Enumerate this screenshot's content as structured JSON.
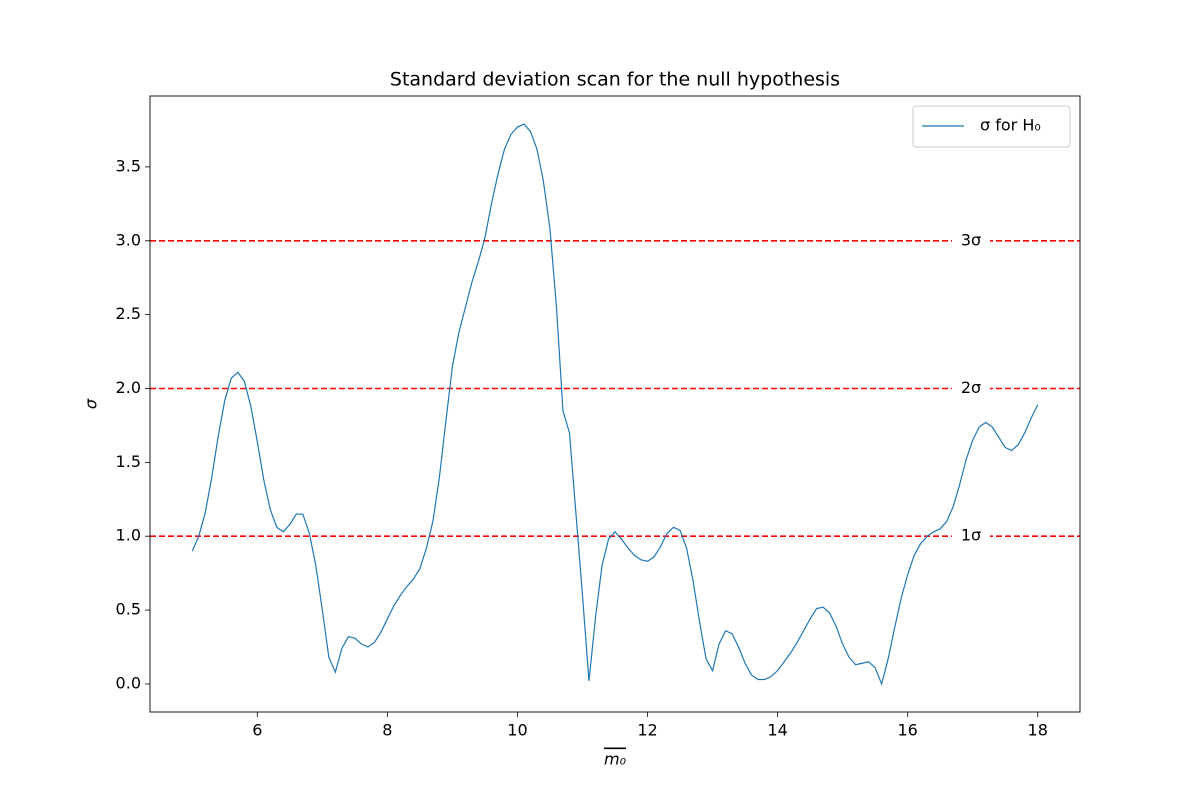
{
  "chart_data": {
    "type": "line",
    "title": "Standard deviation scan for the null hypothesis",
    "xlabel": "m₀",
    "ylabel": "σ",
    "x": [
      5.0,
      5.1,
      5.2,
      5.3,
      5.4,
      5.5,
      5.6,
      5.7,
      5.8,
      5.9,
      6.0,
      6.1,
      6.2,
      6.3,
      6.4,
      6.5,
      6.6,
      6.7,
      6.8,
      6.9,
      7.0,
      7.1,
      7.2,
      7.3,
      7.4,
      7.5,
      7.6,
      7.7,
      7.8,
      7.9,
      8.0,
      8.1,
      8.2,
      8.3,
      8.4,
      8.5,
      8.6,
      8.7,
      8.8,
      8.9,
      9.0,
      9.1,
      9.2,
      9.3,
      9.4,
      9.5,
      9.6,
      9.7,
      9.8,
      9.9,
      10.0,
      10.1,
      10.2,
      10.3,
      10.4,
      10.5,
      10.6,
      10.7,
      10.8,
      10.9,
      11.0,
      11.1,
      11.2,
      11.3,
      11.4,
      11.5,
      11.6,
      11.7,
      11.8,
      11.9,
      12.0,
      12.1,
      12.2,
      12.3,
      12.4,
      12.5,
      12.6,
      12.7,
      12.8,
      12.9,
      13.0,
      13.1,
      13.2,
      13.3,
      13.4,
      13.5,
      13.6,
      13.7,
      13.8,
      13.9,
      14.0,
      14.1,
      14.2,
      14.3,
      14.4,
      14.5,
      14.6,
      14.7,
      14.8,
      14.9,
      15.0,
      15.1,
      15.2,
      15.3,
      15.4,
      15.5,
      15.6,
      15.7,
      15.8,
      15.9,
      16.0,
      16.1,
      16.2,
      16.3,
      16.4,
      16.5,
      16.6,
      16.7,
      16.8,
      16.9,
      17.0,
      17.1,
      17.2,
      17.3,
      17.4,
      17.5,
      17.6,
      17.7,
      17.8,
      17.9,
      18.0
    ],
    "series": [
      {
        "name": "σ for H₀",
        "color": "#1f77b4",
        "values": [
          0.9,
          1.0,
          1.16,
          1.4,
          1.68,
          1.92,
          2.07,
          2.11,
          2.05,
          1.88,
          1.64,
          1.38,
          1.18,
          1.06,
          1.03,
          1.08,
          1.15,
          1.15,
          1.02,
          0.8,
          0.5,
          0.18,
          0.08,
          0.24,
          0.32,
          0.31,
          0.27,
          0.25,
          0.28,
          0.35,
          0.44,
          0.53,
          0.6,
          0.66,
          0.71,
          0.78,
          0.92,
          1.1,
          1.4,
          1.78,
          2.15,
          2.38,
          2.55,
          2.72,
          2.86,
          3.02,
          3.25,
          3.45,
          3.62,
          3.72,
          3.77,
          3.79,
          3.74,
          3.62,
          3.4,
          3.08,
          2.55,
          1.85,
          1.7,
          1.15,
          0.6,
          0.02,
          0.45,
          0.8,
          0.98,
          1.03,
          0.98,
          0.92,
          0.87,
          0.84,
          0.83,
          0.86,
          0.93,
          1.02,
          1.06,
          1.04,
          0.92,
          0.7,
          0.42,
          0.17,
          0.09,
          0.27,
          0.36,
          0.34,
          0.25,
          0.14,
          0.06,
          0.03,
          0.03,
          0.05,
          0.09,
          0.15,
          0.21,
          0.28,
          0.36,
          0.44,
          0.51,
          0.52,
          0.48,
          0.39,
          0.27,
          0.18,
          0.13,
          0.14,
          0.15,
          0.11,
          0.0,
          0.17,
          0.38,
          0.58,
          0.74,
          0.87,
          0.95,
          1.0,
          1.03,
          1.05,
          1.1,
          1.2,
          1.35,
          1.52,
          1.65,
          1.74,
          1.77,
          1.74,
          1.67,
          1.6,
          1.58,
          1.62,
          1.7,
          1.8,
          1.89
        ]
      }
    ],
    "hlines": [
      {
        "value": 1,
        "label": "1σ"
      },
      {
        "value": 2,
        "label": "2σ"
      },
      {
        "value": 3,
        "label": "3σ"
      }
    ],
    "hline_color": "#ff0000",
    "xlim": [
      4.35,
      18.65
    ],
    "ylim": [
      -0.19,
      3.98
    ],
    "xticks": [
      6,
      8,
      10,
      12,
      14,
      16,
      18
    ],
    "yticks": [
      {
        "value": 0,
        "label": "0.0"
      },
      0.5,
      {
        "value": 1,
        "label": "1.0"
      },
      1.5,
      {
        "value": 2,
        "label": "2.0"
      },
      2.5,
      {
        "value": 3,
        "label": "3.0"
      },
      3.5
    ],
    "legend": "upper right"
  }
}
